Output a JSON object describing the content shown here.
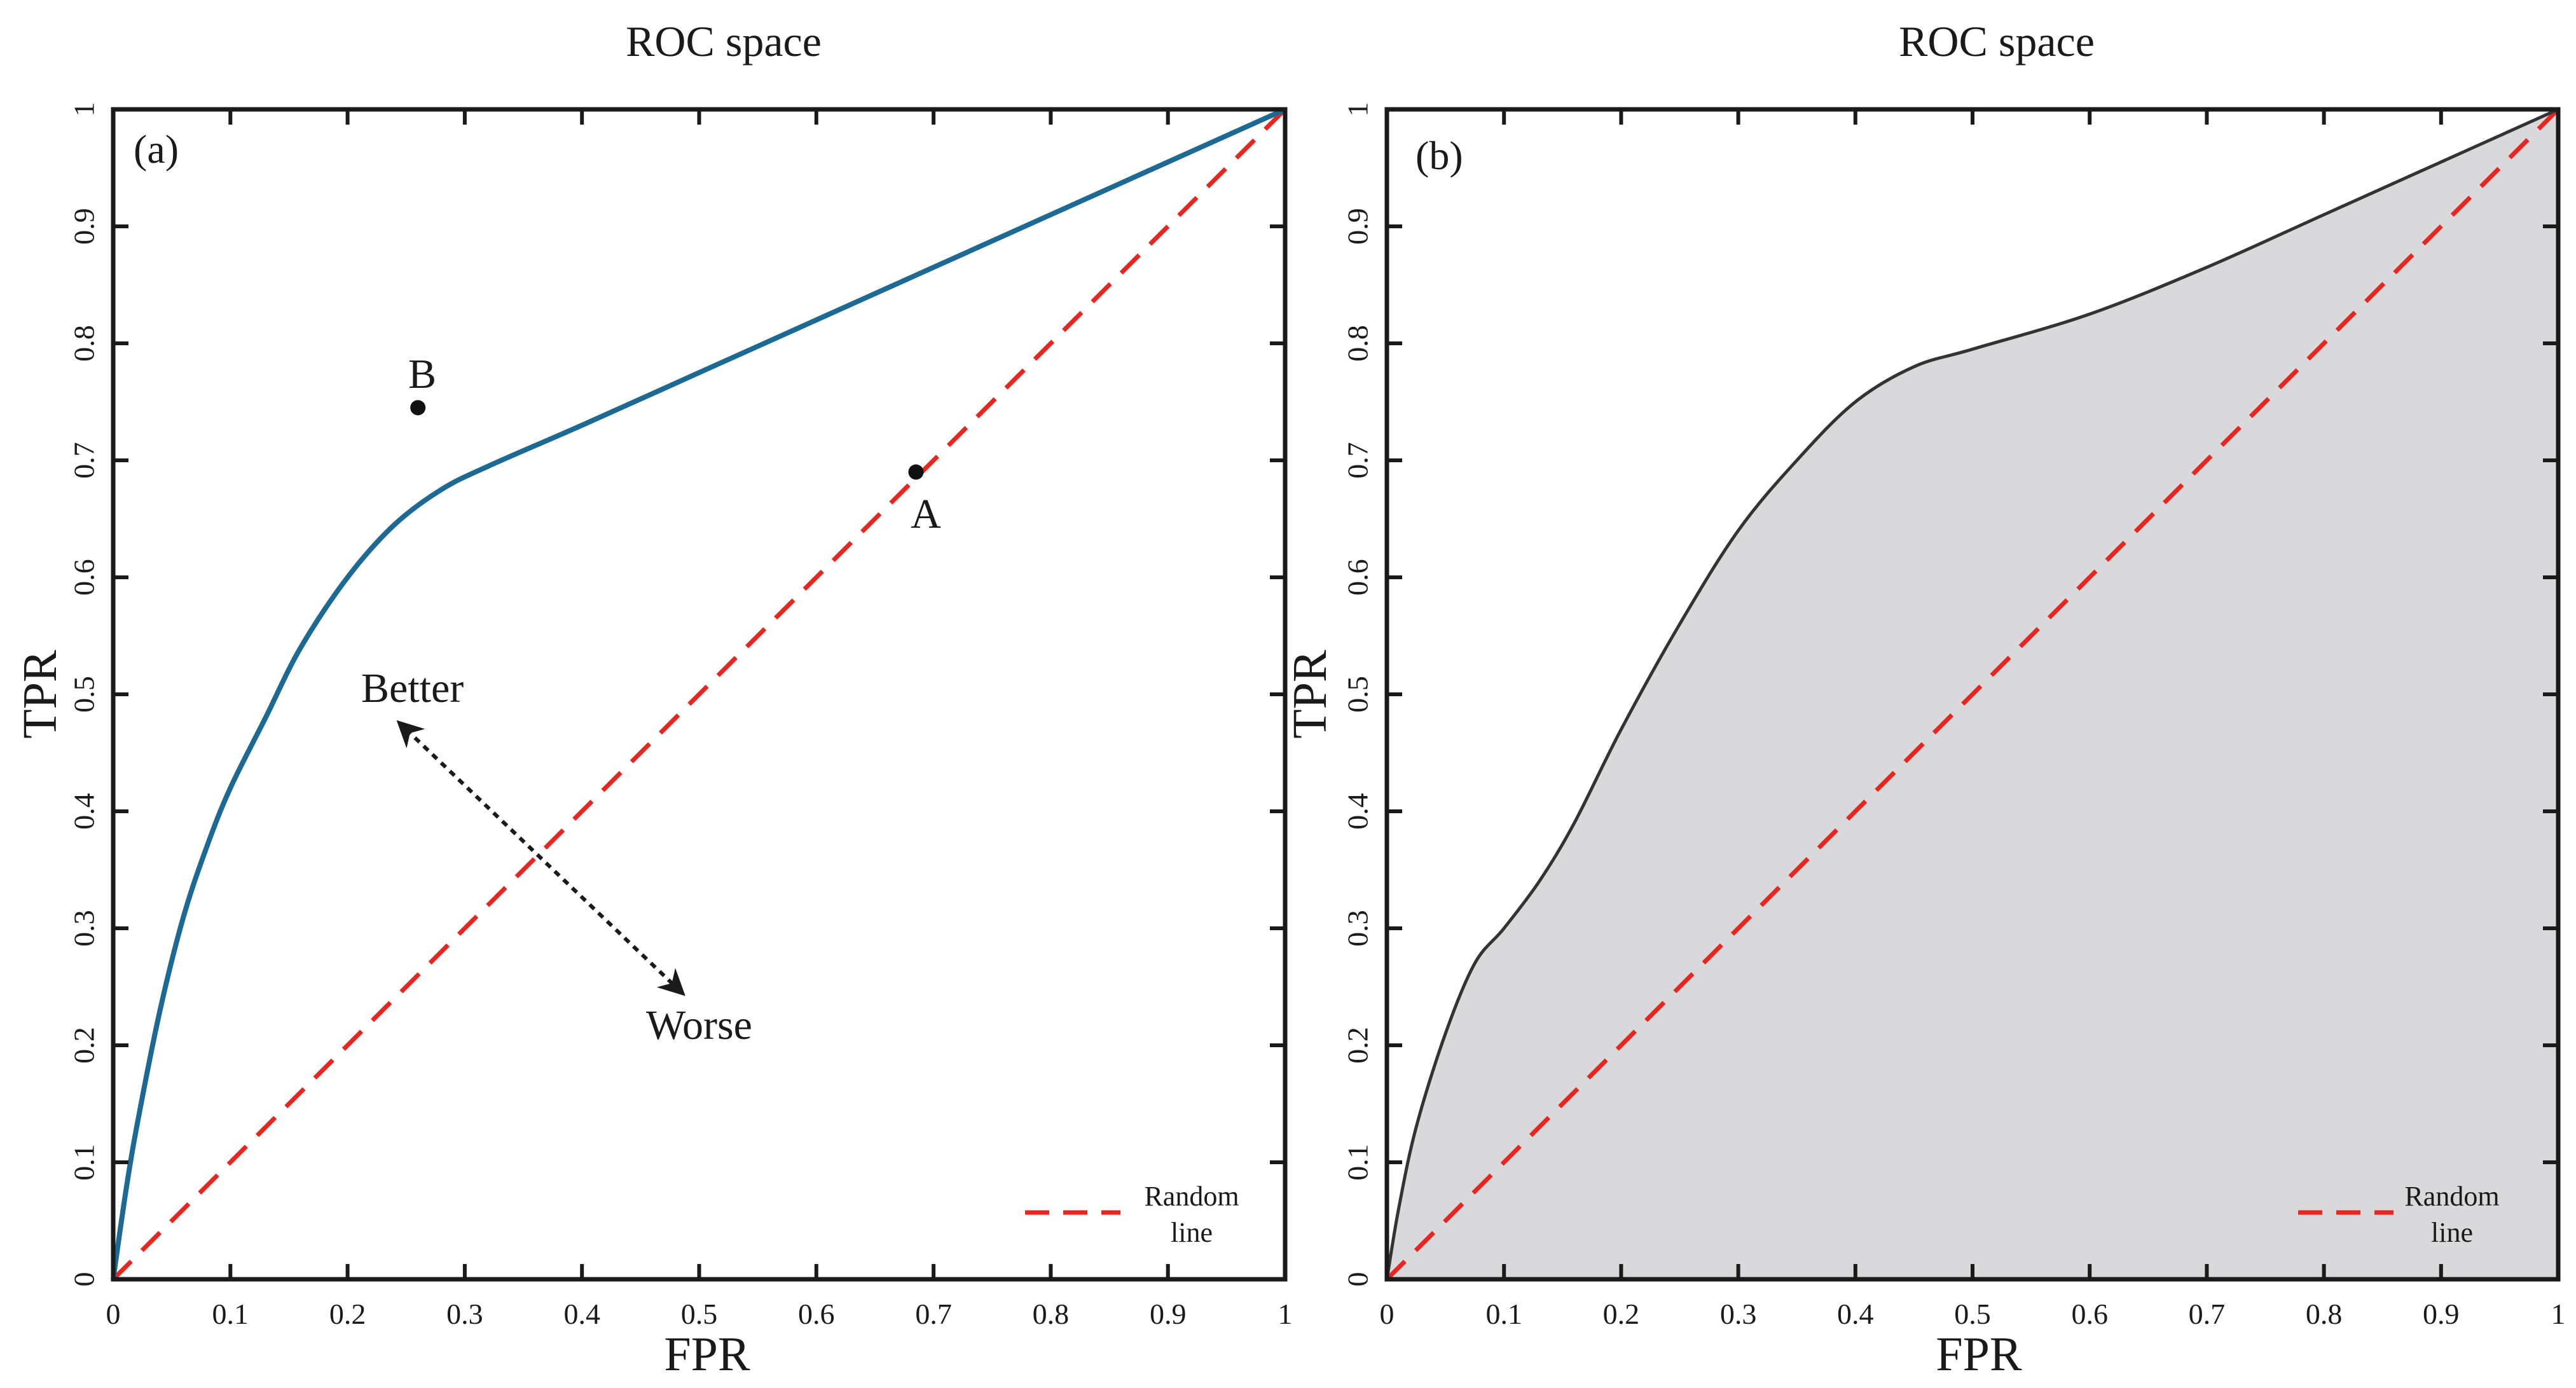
{
  "colors": {
    "roc_curve_a": "#1c6a94",
    "roc_curve_b": "#333333",
    "area_fill": "#d9d9dc",
    "random_line": "#e8261f",
    "axis": "#1a1a1a"
  },
  "chart_data": [
    {
      "type": "line",
      "panel_label": "(a)",
      "title": "ROC space",
      "xlabel": "FPR",
      "ylabel": "TPR",
      "xlim": [
        0,
        1
      ],
      "ylim": [
        0,
        1
      ],
      "xticks": [
        0,
        0.1,
        0.2,
        0.3,
        0.4,
        0.5,
        0.6,
        0.7,
        0.8,
        0.9,
        1
      ],
      "yticks": [
        0,
        0.1,
        0.2,
        0.3,
        0.4,
        0.5,
        0.6,
        0.7,
        0.8,
        0.9,
        1
      ],
      "xtick_labels": [
        "0",
        "0.1",
        "0.2",
        "0.3",
        "0.4",
        "0.5",
        "0.6",
        "0.7",
        "0.8",
        "0.9",
        "1"
      ],
      "ytick_labels": [
        "0",
        "0.1",
        "0.2",
        "0.3",
        "0.4",
        "0.5",
        "0.6",
        "0.7",
        "0.8",
        "0.9",
        "1"
      ],
      "grid": false,
      "series": [
        {
          "name": "ROC curve",
          "style": "solid",
          "x": [
            0,
            0.01,
            0.02,
            0.04,
            0.06,
            0.08,
            0.1,
            0.13,
            0.16,
            0.2,
            0.24,
            0.28,
            0.32,
            0.4,
            0.5,
            0.6,
            0.7,
            0.8,
            0.9,
            1
          ],
          "y": [
            0,
            0.07,
            0.13,
            0.23,
            0.31,
            0.37,
            0.42,
            0.48,
            0.54,
            0.6,
            0.645,
            0.675,
            0.695,
            0.73,
            0.775,
            0.82,
            0.865,
            0.91,
            0.955,
            1
          ]
        },
        {
          "name": "Random line",
          "style": "dashed",
          "x": [
            0,
            1
          ],
          "y": [
            0,
            1
          ]
        }
      ],
      "points": [
        {
          "label": "A",
          "x": 0.685,
          "y": 0.69,
          "label_position": "below"
        },
        {
          "label": "B",
          "x": 0.26,
          "y": 0.745,
          "label_position": "above"
        }
      ],
      "annotations": {
        "better": "Better",
        "worse": "Worse",
        "arrow_from": [
          0.25,
          0.47
        ],
        "arrow_to": [
          0.48,
          0.25
        ]
      },
      "legend": {
        "entries": [
          "Random line"
        ],
        "text_lines": [
          "Random",
          "line"
        ],
        "position": "bottom-right"
      }
    },
    {
      "type": "area",
      "panel_label": "(b)",
      "title": "ROC space",
      "xlabel": "FPR",
      "ylabel": "TPR",
      "xlim": [
        0,
        1
      ],
      "ylim": [
        0,
        1
      ],
      "xticks": [
        0,
        0.1,
        0.2,
        0.3,
        0.4,
        0.5,
        0.6,
        0.7,
        0.8,
        0.9,
        1
      ],
      "yticks": [
        0,
        0.1,
        0.2,
        0.3,
        0.4,
        0.5,
        0.6,
        0.7,
        0.8,
        0.9,
        1
      ],
      "xtick_labels": [
        "0",
        "0.1",
        "0.2",
        "0.3",
        "0.4",
        "0.5",
        "0.6",
        "0.7",
        "0.8",
        "0.9",
        "1"
      ],
      "ytick_labels": [
        "0",
        "0.1",
        "0.2",
        "0.3",
        "0.4",
        "0.5",
        "0.6",
        "0.7",
        "0.8",
        "0.9",
        "1"
      ],
      "grid": false,
      "series": [
        {
          "name": "ROC curve (AUC shaded)",
          "style": "solid-filled",
          "x": [
            0,
            0.01,
            0.025,
            0.05,
            0.075,
            0.1,
            0.13,
            0.16,
            0.2,
            0.25,
            0.3,
            0.35,
            0.4,
            0.45,
            0.5,
            0.6,
            0.7,
            0.8,
            0.9,
            1
          ],
          "y": [
            0,
            0.06,
            0.13,
            0.21,
            0.27,
            0.3,
            0.34,
            0.39,
            0.47,
            0.56,
            0.64,
            0.7,
            0.75,
            0.78,
            0.795,
            0.825,
            0.865,
            0.91,
            0.955,
            1
          ]
        },
        {
          "name": "Random line",
          "style": "dashed",
          "x": [
            0,
            1
          ],
          "y": [
            0,
            1
          ]
        }
      ],
      "legend": {
        "entries": [
          "Random line"
        ],
        "text_lines": [
          "Random",
          "line"
        ],
        "position": "bottom-right"
      }
    }
  ]
}
